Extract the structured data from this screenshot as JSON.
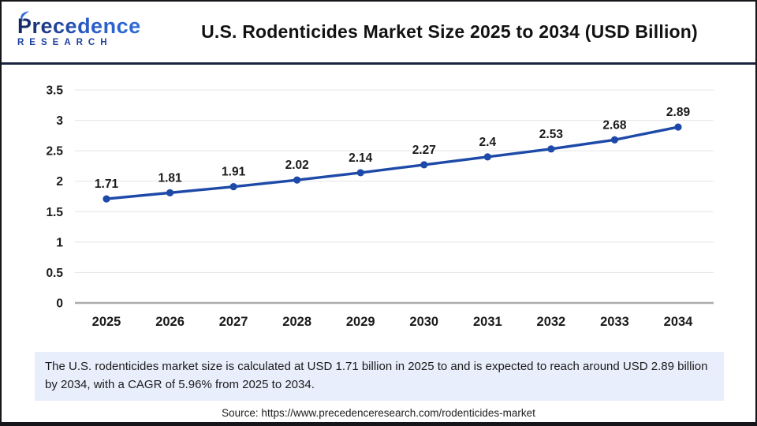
{
  "header": {
    "title": "U.S. Rodenticides Market Size 2025 to 2034 (USD Billion)",
    "logo": {
      "name": "Precedence",
      "sub": "RESEARCH"
    }
  },
  "chart_data": {
    "type": "line",
    "title": "U.S. Rodenticides Market Size 2025 to 2034 (USD Billion)",
    "series_name": "U.S. Rodenticides Market Size (USD Billion)",
    "categories": [
      "2025",
      "2026",
      "2027",
      "2028",
      "2029",
      "2030",
      "2031",
      "2032",
      "2033",
      "2034"
    ],
    "values": [
      1.71,
      1.81,
      1.91,
      2.02,
      2.14,
      2.27,
      2.4,
      2.53,
      2.68,
      2.89
    ],
    "point_labels": [
      "1.71",
      "1.81",
      "1.91",
      "2.02",
      "2.14",
      "2.27",
      "2.4",
      "2.53",
      "2.68",
      "2.89"
    ],
    "xlabel": "",
    "ylabel": "",
    "ylim": [
      0,
      3.5
    ],
    "y_ticks": [
      0,
      0.5,
      1,
      1.5,
      2,
      2.5,
      3,
      3.5
    ],
    "y_tick_labels": [
      "0",
      "0.5",
      "1",
      "1.5",
      "2",
      "2.5",
      "3",
      "3.5"
    ],
    "grid": true,
    "legend": "none",
    "line_color": "#1d49a8",
    "grid_color": "#e5e5e5",
    "axis_color": "#ababab",
    "label_color": "#1a1a1a"
  },
  "summary": {
    "text": "The U.S. rodenticides market size is calculated at USD 1.71 billion in 2025 to and is expected to reach around USD 2.89 billion by 2034, with a CAGR of 5.96% from 2025 to 2034."
  },
  "source": {
    "text": "Source: https://www.precedenceresearch.com/rodenticides-market"
  },
  "colors": {
    "accent_navy": "#1a2240",
    "line_blue": "#1d49a8",
    "summary_bg": "#e8eefb",
    "frame_border": "#15151a"
  }
}
